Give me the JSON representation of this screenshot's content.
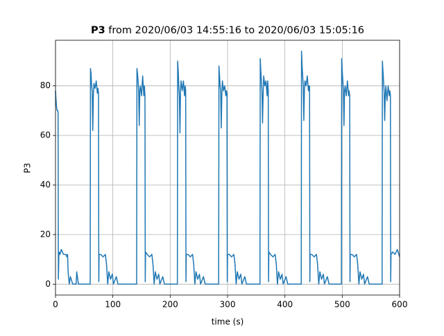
{
  "chart_data": {
    "type": "line",
    "title_series": "P3",
    "title": "from 2020/06/03 14:55:16 to 2020/06/03 15:05:16",
    "x_label": "time (s)",
    "y_label": "P3",
    "x": [
      0,
      1,
      2,
      3,
      4,
      4.5,
      5,
      6,
      8,
      10,
      14,
      18,
      20,
      21,
      22,
      24,
      26,
      30,
      36,
      37,
      40,
      45,
      55,
      60.5,
      61,
      62,
      63,
      64,
      65,
      66,
      67,
      69,
      71,
      73,
      74,
      75,
      75.5,
      76,
      79,
      83,
      87,
      89,
      91,
      93,
      96,
      99,
      101,
      106,
      109,
      141.5,
      142,
      143,
      144,
      145,
      146,
      147,
      148,
      150,
      152,
      154,
      155,
      156,
      156.5,
      157,
      160,
      164,
      168,
      170,
      172,
      174,
      177,
      180,
      182,
      187,
      190,
      212.5,
      213,
      214,
      215,
      216,
      217,
      218,
      219,
      221,
      223,
      225,
      226,
      227,
      227.5,
      228,
      231,
      235,
      239,
      241,
      243,
      245,
      248,
      251,
      253,
      258,
      261,
      284.5,
      285,
      286,
      287,
      288,
      289,
      290,
      291,
      293,
      295,
      297,
      298,
      299,
      299.5,
      300,
      303,
      307,
      311,
      313,
      315,
      317,
      320,
      323,
      325,
      330,
      333,
      356.5,
      357,
      358,
      359,
      360,
      361,
      362,
      363,
      365,
      367,
      369,
      370,
      371,
      371.5,
      372,
      375,
      379,
      383,
      385,
      387,
      389,
      392,
      395,
      397,
      402,
      405,
      428.5,
      429,
      430,
      431,
      432,
      433,
      434,
      435,
      437,
      439,
      441,
      442,
      443,
      443.5,
      444,
      447,
      451,
      455,
      457,
      459,
      461,
      464,
      467,
      469,
      474,
      477,
      498.5,
      499,
      500,
      501,
      502,
      503,
      504,
      505,
      507,
      509,
      511,
      512,
      513,
      513.5,
      514,
      517,
      521,
      525,
      527,
      529,
      531,
      534,
      537,
      539,
      544,
      547,
      569.5,
      570,
      571,
      572,
      573,
      574,
      575,
      576,
      578,
      580,
      582,
      583,
      584,
      584.5,
      585,
      588,
      592,
      596,
      600
    ],
    "series": [
      {
        "name": "P3",
        "color": "#1f77b4",
        "values": [
          78,
          74,
          71,
          70,
          70,
          69,
          2,
          13,
          12,
          14,
          12,
          12,
          11,
          12,
          5,
          0,
          3,
          0,
          0,
          5,
          0,
          0,
          0,
          0,
          87,
          85,
          80,
          78,
          62,
          76,
          81,
          79,
          82,
          77,
          79,
          77,
          1,
          12,
          12,
          11,
          12,
          8,
          0,
          5,
          2,
          4,
          0,
          3,
          0,
          0,
          87,
          85,
          82,
          78,
          64,
          78,
          80,
          76,
          84,
          76,
          80,
          76,
          1,
          13,
          12,
          11,
          12,
          8,
          0,
          5,
          2,
          4,
          0,
          3,
          0,
          0,
          90,
          86,
          80,
          76,
          61,
          78,
          82,
          78,
          82,
          76,
          80,
          78,
          1,
          12,
          12,
          11,
          12,
          8,
          0,
          5,
          2,
          4,
          0,
          3,
          0,
          0,
          88,
          84,
          80,
          78,
          63,
          76,
          82,
          78,
          80,
          76,
          78,
          77,
          1,
          12,
          12,
          11,
          12,
          8,
          0,
          5,
          2,
          4,
          0,
          3,
          0,
          0,
          91,
          86,
          82,
          78,
          65,
          76,
          84,
          80,
          82,
          76,
          82,
          78,
          1,
          13,
          12,
          11,
          12,
          8,
          0,
          5,
          2,
          4,
          0,
          3,
          0,
          0,
          94,
          88,
          84,
          80,
          66,
          78,
          82,
          80,
          84,
          78,
          80,
          80,
          1,
          12,
          12,
          11,
          12,
          8,
          0,
          5,
          2,
          4,
          0,
          3,
          0,
          0,
          91,
          86,
          82,
          78,
          64,
          78,
          80,
          76,
          82,
          76,
          78,
          76,
          1,
          12,
          12,
          11,
          12,
          8,
          0,
          5,
          2,
          4,
          0,
          3,
          0,
          0,
          90,
          86,
          82,
          78,
          66,
          76,
          80,
          74,
          80,
          76,
          78,
          76,
          1,
          12,
          13,
          12,
          14,
          11
        ]
      }
    ],
    "xlim": [
      0,
      600
    ],
    "xticks": [
      0,
      100,
      200,
      300,
      400,
      500,
      600
    ],
    "ylim": [
      -4.4,
      98.4
    ],
    "yticks": [
      0,
      20,
      40,
      60,
      80
    ],
    "grid": true
  }
}
